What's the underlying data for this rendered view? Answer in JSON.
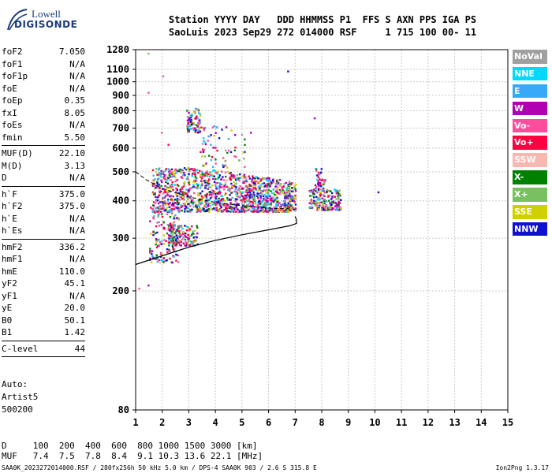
{
  "logo": {
    "line1": "Lowell",
    "line2": "DIGISONDE"
  },
  "header": {
    "line1": "Station YYYY DAY   DDD HHMMSS P1  FFS S AXN PPS IGA PS",
    "line2": "SaoLuis 2023 Sep29 272 014000 RSF     1 715 100 00- 11"
  },
  "params": {
    "group1": [
      {
        "k": "foF2",
        "v": "7.050"
      },
      {
        "k": "foF1",
        "v": "N/A"
      },
      {
        "k": "foF1p",
        "v": "N/A"
      },
      {
        "k": "foE",
        "v": "N/A"
      },
      {
        "k": "foEp",
        "v": "0.35"
      },
      {
        "k": "fxI",
        "v": "8.05"
      },
      {
        "k": "foEs",
        "v": "N/A"
      },
      {
        "k": "fmin",
        "v": "5.50"
      }
    ],
    "group2": [
      {
        "k": "MUF(D)",
        "v": "22.10"
      },
      {
        "k": "M(D)",
        "v": "3.13"
      },
      {
        "k": "D",
        "v": "N/A"
      }
    ],
    "group3": [
      {
        "k": "h`F",
        "v": "375.0"
      },
      {
        "k": "h`F2",
        "v": "375.0"
      },
      {
        "k": "h`E",
        "v": "N/A"
      },
      {
        "k": "h`Es",
        "v": "N/A"
      }
    ],
    "group4": [
      {
        "k": "hmF2",
        "v": "336.2"
      },
      {
        "k": "hmF1",
        "v": "N/A"
      },
      {
        "k": "hmE",
        "v": "110.0"
      },
      {
        "k": "yF2",
        "v": "45.1"
      },
      {
        "k": "yF1",
        "v": "N/A"
      },
      {
        "k": "yE",
        "v": "20.0"
      },
      {
        "k": "B0",
        "v": "50.1"
      },
      {
        "k": "B1",
        "v": "1.42"
      }
    ],
    "clevel": {
      "k": "C-level",
      "v": "44"
    }
  },
  "auto": {
    "line1": "Auto:",
    "line2": "Artist5",
    "line3": "500200"
  },
  "legend": [
    {
      "label": "NoVal",
      "color": "#a0a0a0"
    },
    {
      "label": "NNE",
      "color": "#00d8ff"
    },
    {
      "label": "E",
      "color": "#38a8f8"
    },
    {
      "label": "W",
      "color": "#b000b0"
    },
    {
      "label": "Vo-",
      "color": "#ff4c9c"
    },
    {
      "label": "Vo+",
      "color": "#ff0040"
    },
    {
      "label": "SSW",
      "color": "#f8b8b0"
    },
    {
      "label": "X-",
      "color": "#008000"
    },
    {
      "label": "X+",
      "color": "#78c060"
    },
    {
      "label": "SSE",
      "color": "#d0d000"
    },
    {
      "label": "NNW",
      "color": "#1010d0"
    }
  ],
  "bottom": {
    "row1": "D     100  200  400  600  800 1000 1500 3000 [km]",
    "row2": "MUF   7.4  7.5  7.8  8.4  9.1 10.3 13.6 22.1 [MHz]"
  },
  "footer": {
    "left": "SAA0K_2023272014000.RSF / 280fx256h 50 kHz 5.0 km / DPS-4 SAA0K 903 / 2.6 S 315.8 E",
    "right": "Ion2Png 1.3.17"
  },
  "chart_data": {
    "type": "scatter",
    "title": "",
    "xlabel": "",
    "ylabel": "",
    "xlim": [
      1,
      15
    ],
    "ylim": [
      80,
      1280
    ],
    "y_scale": "log",
    "x_ticks": [
      1,
      2,
      3,
      4,
      5,
      6,
      7,
      8,
      9,
      10,
      11,
      12,
      13,
      14,
      15
    ],
    "y_ticks": [
      80,
      200,
      300,
      400,
      500,
      600,
      700,
      800,
      900,
      1000,
      1100,
      1280
    ],
    "grid": true,
    "echo_regions": [
      {
        "fmin": 1.5,
        "fmax": 2.6,
        "hmin": 250,
        "hmax": 390,
        "count": 160,
        "note": "low layer"
      },
      {
        "fmin": 1.6,
        "fmax": 7.0,
        "hmin": 370,
        "hmax": 520,
        "count": 1400,
        "note": "F layer"
      },
      {
        "fmin": 2.2,
        "fmax": 3.3,
        "hmin": 285,
        "hmax": 335,
        "count": 150,
        "note": "spread"
      },
      {
        "fmin": 2.9,
        "fmax": 3.4,
        "hmin": 680,
        "hmax": 820,
        "count": 90,
        "note": "second hop"
      },
      {
        "fmin": 3.4,
        "fmax": 5.1,
        "hmin": 520,
        "hmax": 720,
        "count": 70,
        "note": "scatter"
      },
      {
        "fmin": 7.5,
        "fmax": 8.7,
        "hmin": 375,
        "hmax": 440,
        "count": 200,
        "note": "extraordinary"
      },
      {
        "fmin": 7.7,
        "fmax": 8.1,
        "hmin": 440,
        "hmax": 520,
        "count": 40,
        "note": "spread"
      }
    ],
    "isolated_points": [
      {
        "f": 1.45,
        "h": 1250
      },
      {
        "f": 1.45,
        "h": 925
      },
      {
        "f": 2.0,
        "h": 1050
      },
      {
        "f": 1.45,
        "h": 210
      },
      {
        "f": 1.1,
        "h": 205
      },
      {
        "f": 10.1,
        "h": 430
      },
      {
        "f": 7.7,
        "h": 760
      },
      {
        "f": 6.7,
        "h": 1090
      },
      {
        "f": 5.3,
        "h": 680
      },
      {
        "f": 1.95,
        "h": 680
      },
      {
        "f": 2.2,
        "h": 620
      }
    ],
    "profile_curve": [
      [
        1.0,
        245
      ],
      [
        2.0,
        262
      ],
      [
        3.0,
        280
      ],
      [
        4.0,
        295
      ],
      [
        5.0,
        308
      ],
      [
        6.0,
        320
      ],
      [
        6.8,
        330
      ],
      [
        7.05,
        336
      ],
      [
        7.05,
        345
      ],
      [
        7.0,
        355
      ]
    ],
    "dashed_curve": [
      [
        1.0,
        500
      ],
      [
        1.4,
        470
      ],
      [
        2.0,
        440
      ],
      [
        3.0,
        412
      ],
      [
        4.0,
        395
      ],
      [
        5.0,
        385
      ],
      [
        6.0,
        378
      ],
      [
        7.0,
        375
      ]
    ]
  }
}
